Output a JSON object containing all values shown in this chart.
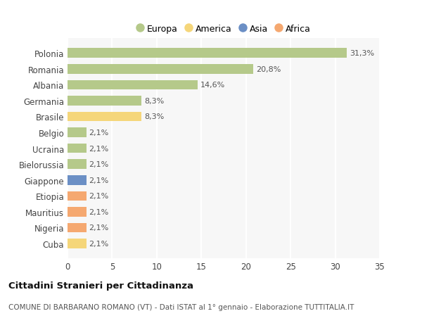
{
  "categories": [
    "Cuba",
    "Nigeria",
    "Mauritius",
    "Etiopia",
    "Giappone",
    "Bielorussia",
    "Ucraina",
    "Belgio",
    "Brasile",
    "Germania",
    "Albania",
    "Romania",
    "Polonia"
  ],
  "values": [
    2.1,
    2.1,
    2.1,
    2.1,
    2.1,
    2.1,
    2.1,
    2.1,
    8.3,
    8.3,
    14.6,
    20.8,
    31.3
  ],
  "colors": [
    "#f5d67a",
    "#f5a870",
    "#f5a870",
    "#f5a870",
    "#6b8fc5",
    "#b5c98a",
    "#b5c98a",
    "#b5c98a",
    "#f5d67a",
    "#b5c98a",
    "#b5c98a",
    "#b5c98a",
    "#b5c98a"
  ],
  "labels": [
    "2,1%",
    "2,1%",
    "2,1%",
    "2,1%",
    "2,1%",
    "2,1%",
    "2,1%",
    "2,1%",
    "8,3%",
    "8,3%",
    "14,6%",
    "20,8%",
    "31,3%"
  ],
  "legend": [
    {
      "label": "Europa",
      "color": "#b5c98a"
    },
    {
      "label": "America",
      "color": "#f5d67a"
    },
    {
      "label": "Asia",
      "color": "#6b8fc5"
    },
    {
      "label": "Africa",
      "color": "#f5a870"
    }
  ],
  "xlim": [
    0,
    35
  ],
  "xticks": [
    0,
    5,
    10,
    15,
    20,
    25,
    30,
    35
  ],
  "title": "Cittadini Stranieri per Cittadinanza",
  "subtitle": "COMUNE DI BARBARANO ROMANO (VT) - Dati ISTAT al 1° gennaio - Elaborazione TUTTITALIA.IT",
  "bg_color": "#ffffff",
  "plot_bg_color": "#f7f7f7",
  "grid_color": "#ffffff",
  "bar_height": 0.6,
  "label_fontsize": 8,
  "ytick_fontsize": 8.5,
  "xtick_fontsize": 8.5
}
